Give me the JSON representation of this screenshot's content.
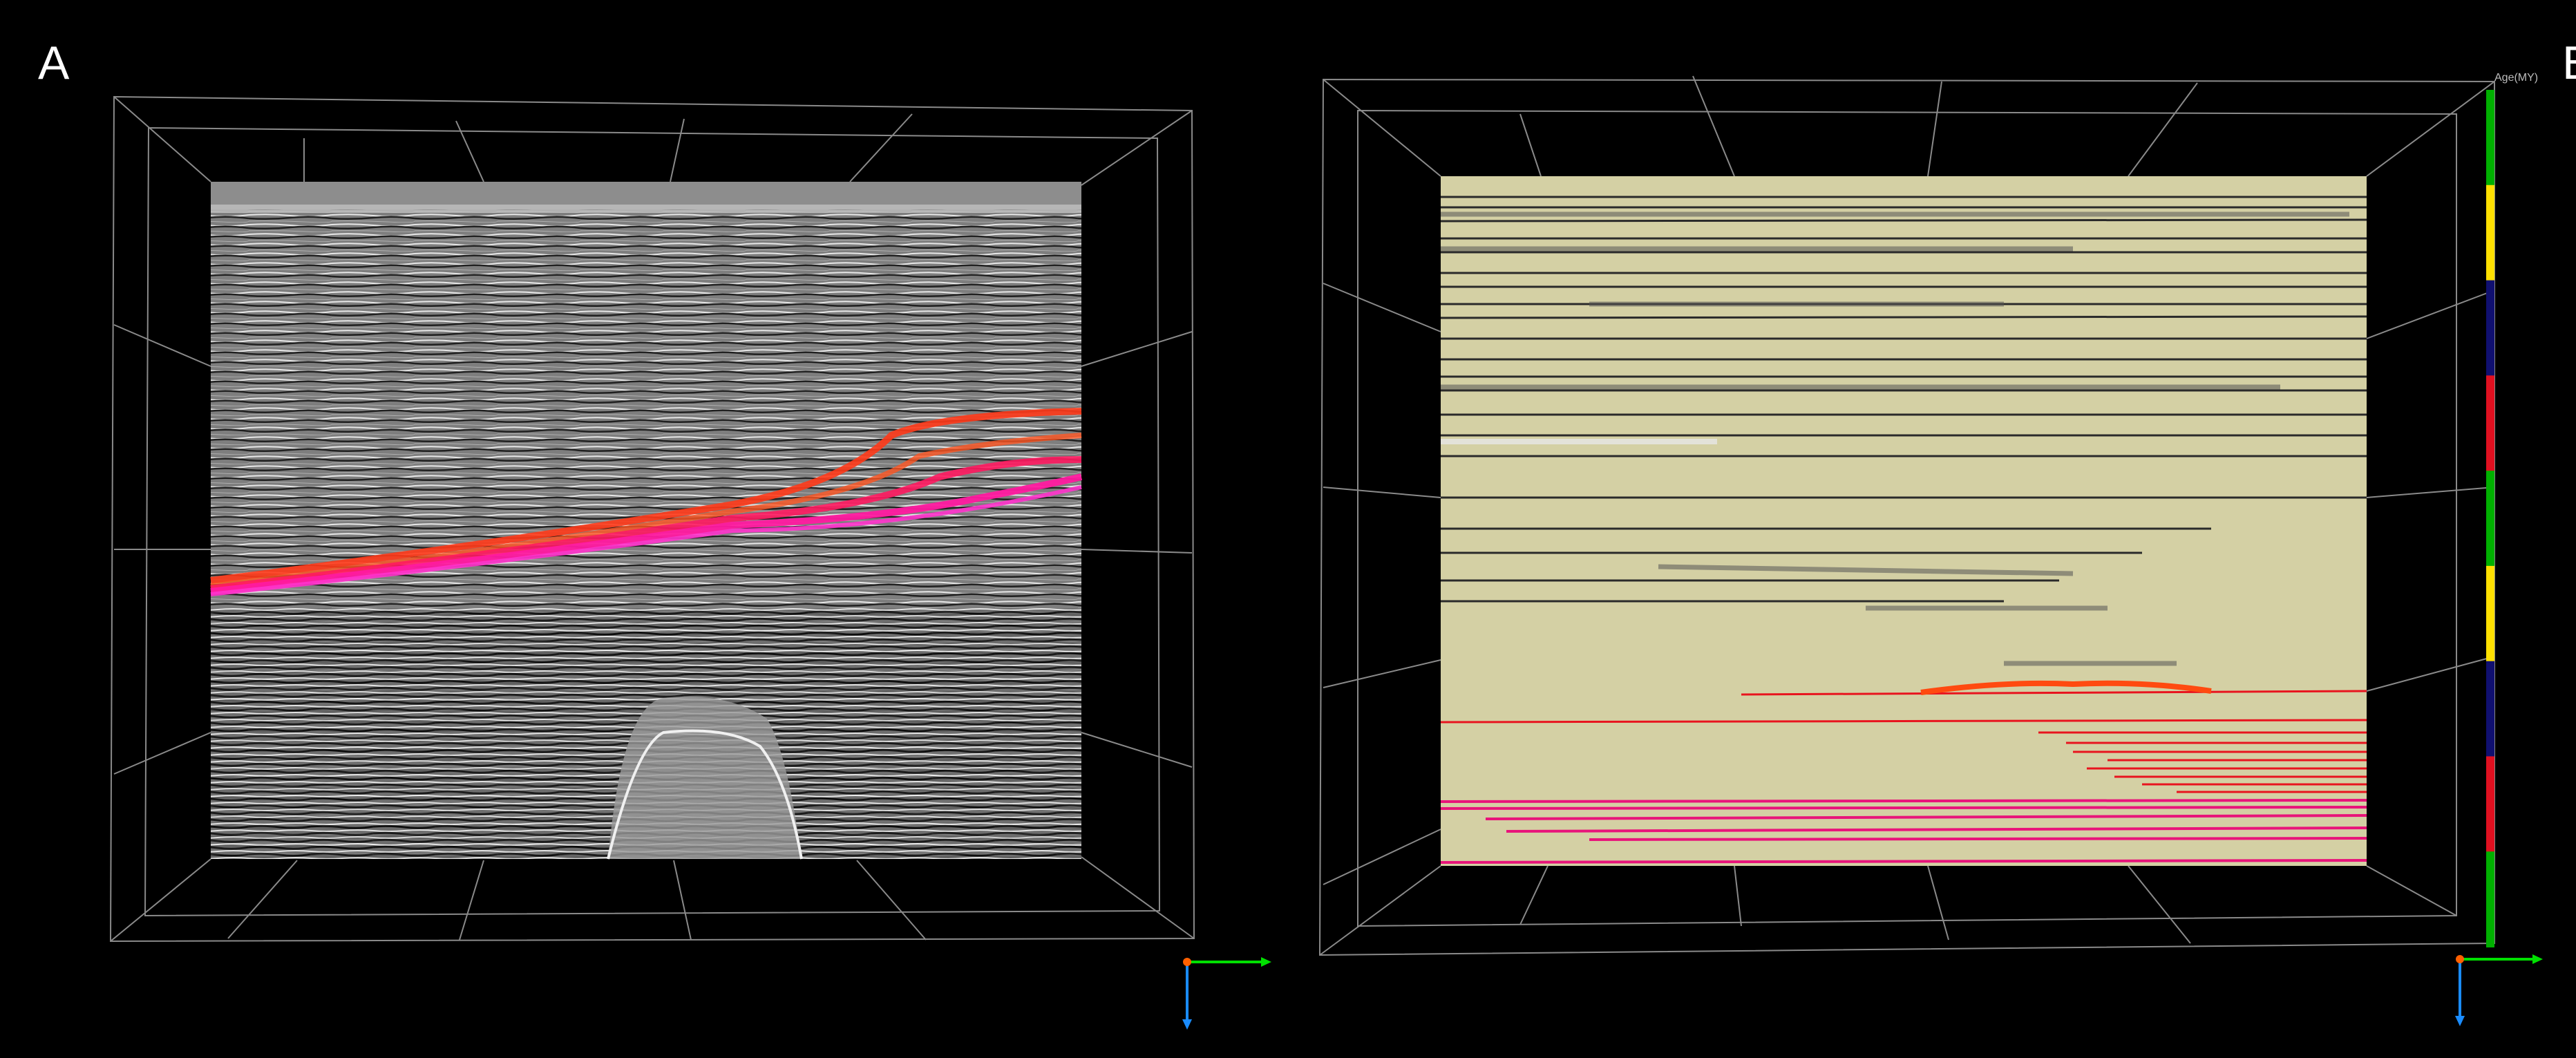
{
  "panels": [
    {
      "label": "A",
      "description_colors": {
        "seismic_gray": "#8c8c8c",
        "horizon_red": "#ff3a1a",
        "horizon_pink": "#ff1aa0"
      }
    },
    {
      "label": "B",
      "description_colors": {
        "background": "#d4d0a4",
        "line_dark": "#2a2a2a",
        "horizon_red": "#e8141e",
        "horizon_pink": "#e8147a"
      }
    }
  ],
  "age_bar": {
    "label": "Age(MY)",
    "segments": [
      "#00b000",
      "#ffe000",
      "#101070",
      "#e01020",
      "#00b000",
      "#ffe000",
      "#101070",
      "#e01020",
      "#00b000"
    ]
  },
  "axis_gizmo": {
    "x_color": "#00e000",
    "y_color": "#1a8cff",
    "origin_color": "#ff6000"
  }
}
